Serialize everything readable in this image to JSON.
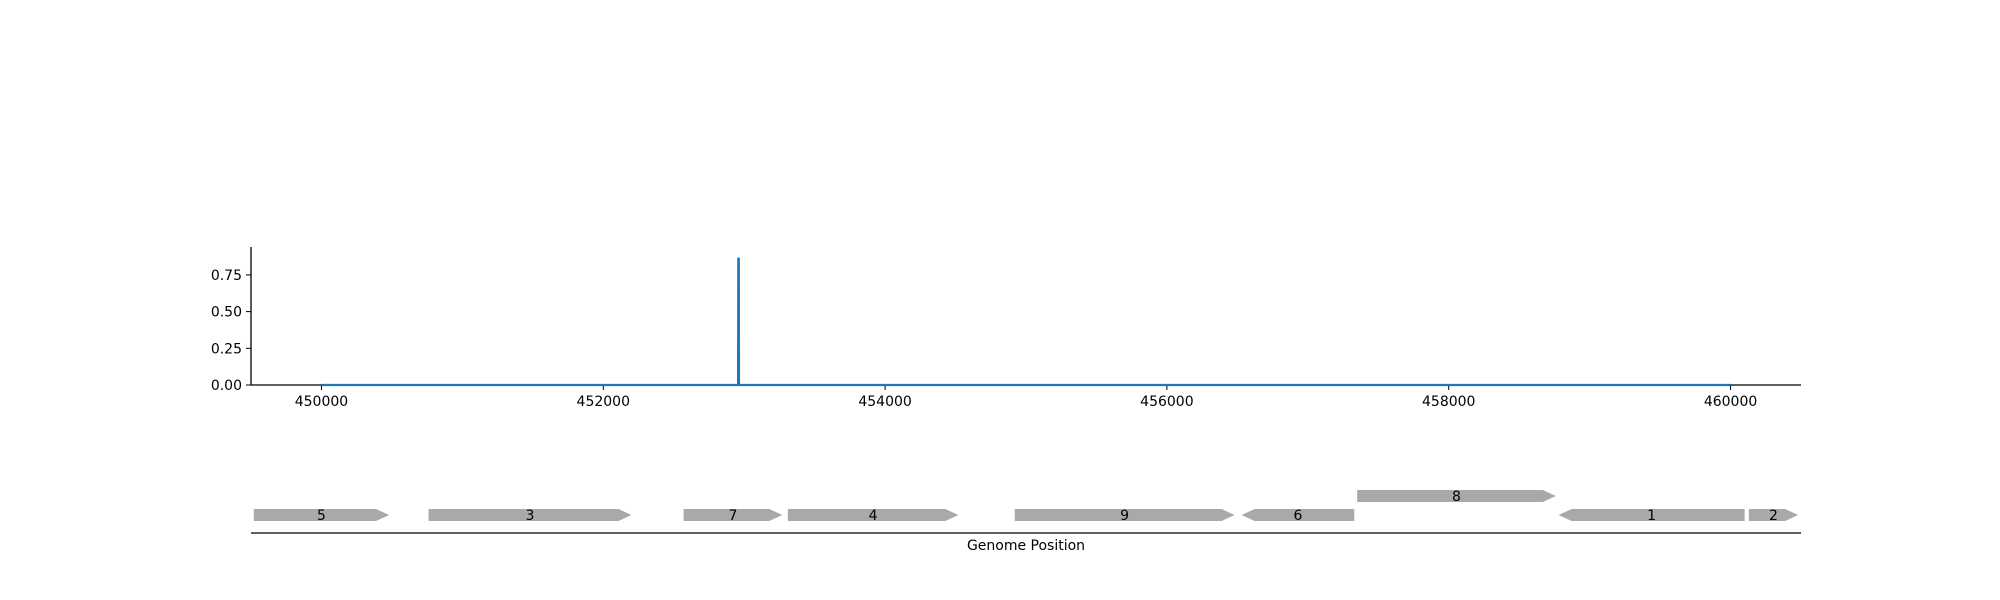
{
  "chart_data": [
    {
      "type": "line",
      "x": [
        450000,
        452957,
        452958,
        452962,
        452963,
        460000
      ],
      "y": [
        0,
        0,
        0.86,
        0.86,
        0,
        0
      ],
      "xlim": [
        449500,
        460500
      ],
      "ylim": [
        0,
        0.94
      ],
      "xticks": [
        450000,
        452000,
        454000,
        456000,
        458000,
        460000
      ],
      "xtick_labels": [
        "450000",
        "452000",
        "454000",
        "456000",
        "458000",
        "460000"
      ],
      "yticks": [
        0,
        0.25,
        0.5,
        0.75
      ],
      "ytick_labels": [
        "0.00",
        "0.25",
        "0.50",
        "0.75"
      ],
      "line_color": "#1f77b4",
      "grid": false
    },
    {
      "type": "gene_map",
      "xlabel": "Genome Position",
      "xlim": [
        449500,
        460500
      ],
      "gene_color": "#a9a9a9",
      "genes": [
        {
          "label": "5",
          "start": 449520,
          "end": 450480,
          "strand": "+",
          "row": 0
        },
        {
          "label": "3",
          "start": 450760,
          "end": 452200,
          "strand": "+",
          "row": 0
        },
        {
          "label": "7",
          "start": 452570,
          "end": 453270,
          "strand": "+",
          "row": 0
        },
        {
          "label": "4",
          "start": 453310,
          "end": 454520,
          "strand": "+",
          "row": 0
        },
        {
          "label": "9",
          "start": 454920,
          "end": 456480,
          "strand": "+",
          "row": 0
        },
        {
          "label": "6",
          "start": 456530,
          "end": 457330,
          "strand": "-",
          "row": 0
        },
        {
          "label": "8",
          "start": 457350,
          "end": 458760,
          "strand": "+",
          "row": 1
        },
        {
          "label": "1",
          "start": 458780,
          "end": 460100,
          "strand": "-",
          "row": 0
        },
        {
          "label": "2",
          "start": 460130,
          "end": 460480,
          "strand": "+",
          "row": 0
        }
      ]
    }
  ]
}
